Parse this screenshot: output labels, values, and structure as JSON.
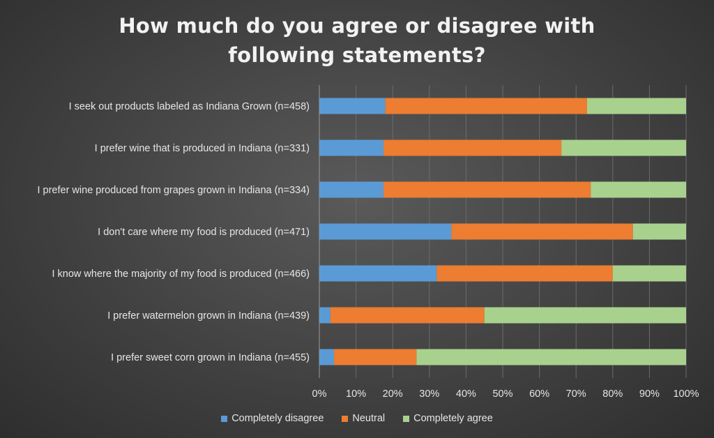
{
  "chart_data": {
    "type": "bar",
    "orientation": "horizontal",
    "stacked": "percent",
    "title": "How much do you agree or disagree with following statements?",
    "title_lines": [
      "How much do you agree or disagree with",
      "following statements?"
    ],
    "categories": [
      "I seek out products labeled as Indiana Grown (n=458)",
      "I prefer wine that is produced in Indiana (n=331)",
      "I prefer wine produced from grapes grown in Indiana (n=334)",
      "I don't care where my food is produced (n=471)",
      "I know where the majority of my food is produced  (n=466)",
      "I prefer watermelon grown in Indiana (n=439)",
      "I prefer sweet corn grown in Indiana (n=455)"
    ],
    "series": [
      {
        "name": "Completely disagree",
        "color": "#5b9bd5",
        "values": [
          18,
          17.5,
          17.5,
          36,
          32,
          3,
          4
        ]
      },
      {
        "name": "Neutral",
        "color": "#ed7d31",
        "values": [
          55,
          48.5,
          56.5,
          49.5,
          48,
          42,
          22.5
        ]
      },
      {
        "name": "Completely agree",
        "color": "#a9d18e",
        "values": [
          27,
          34,
          26,
          14.5,
          20,
          55,
          73.5
        ]
      }
    ],
    "x_ticks": [
      "0%",
      "10%",
      "20%",
      "30%",
      "40%",
      "50%",
      "60%",
      "70%",
      "80%",
      "90%",
      "100%"
    ],
    "xlim": [
      0,
      100
    ],
    "grid": true,
    "legend_position": "bottom"
  }
}
